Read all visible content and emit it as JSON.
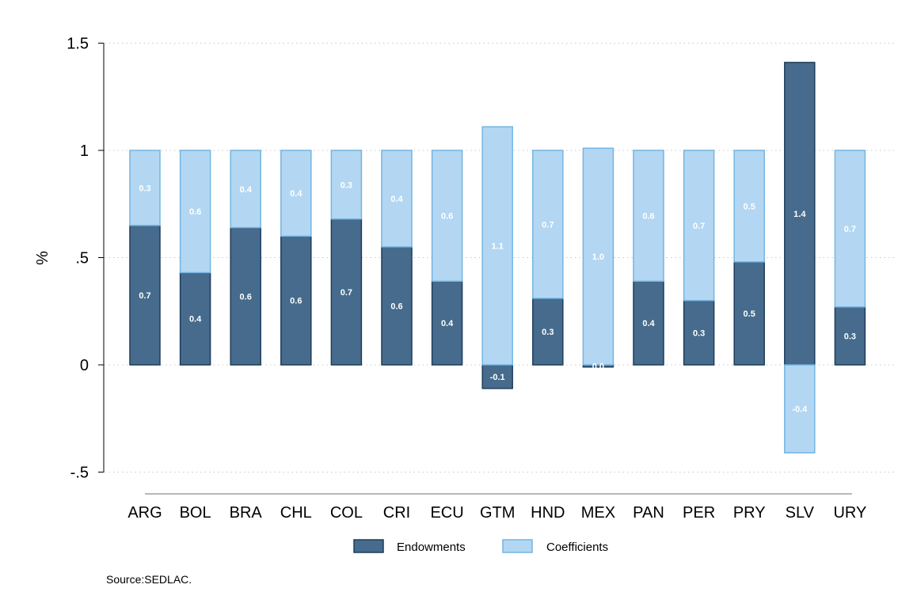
{
  "chart_data": {
    "type": "bar",
    "stacked": true,
    "ylabel": "%",
    "xlabel": "",
    "title": "",
    "ylim": [
      -0.5,
      1.5
    ],
    "yticks": [
      {
        "value": -0.5,
        "label": "-.5"
      },
      {
        "value": 0,
        "label": "0"
      },
      {
        "value": 0.5,
        "label": ".5"
      },
      {
        "value": 1,
        "label": "1"
      },
      {
        "value": 1.5,
        "label": "1.5"
      }
    ],
    "grid": true,
    "legend_position": "bottom",
    "categories": [
      "ARG",
      "BOL",
      "BRA",
      "CHL",
      "COL",
      "CRI",
      "ECU",
      "GTM",
      "HND",
      "MEX",
      "PAN",
      "PER",
      "PRY",
      "SLV",
      "URY"
    ],
    "series": [
      {
        "name": "Endowments",
        "color": "#466b8c",
        "edge": "#1f3d5c",
        "values": [
          0.65,
          0.43,
          0.64,
          0.6,
          0.68,
          0.55,
          0.39,
          -0.11,
          0.31,
          -0.01,
          0.39,
          0.3,
          0.48,
          1.41,
          0.27
        ],
        "labels": [
          "0.7",
          "0.4",
          "0.6",
          "0.6",
          "0.7",
          "0.6",
          "0.4",
          "-0.1",
          "0.3",
          "0.0",
          "0.4",
          "0.3",
          "0.5",
          "1.4",
          "0.3"
        ]
      },
      {
        "name": "Coefficients",
        "color": "#b3d7f2",
        "edge": "#74b4e2",
        "values": [
          0.35,
          0.57,
          0.36,
          0.4,
          0.32,
          0.45,
          0.61,
          1.11,
          0.69,
          1.01,
          0.61,
          0.7,
          0.52,
          -0.41,
          0.73
        ],
        "labels": [
          "0.3",
          "0.6",
          "0.4",
          "0.4",
          "0.3",
          "0.4",
          "0.6",
          "1.1",
          "0.7",
          "1.0",
          "0.6",
          "0.7",
          "0.5",
          "-0.4",
          "0.7"
        ]
      }
    ],
    "source_note": "Source:SEDLAC."
  }
}
